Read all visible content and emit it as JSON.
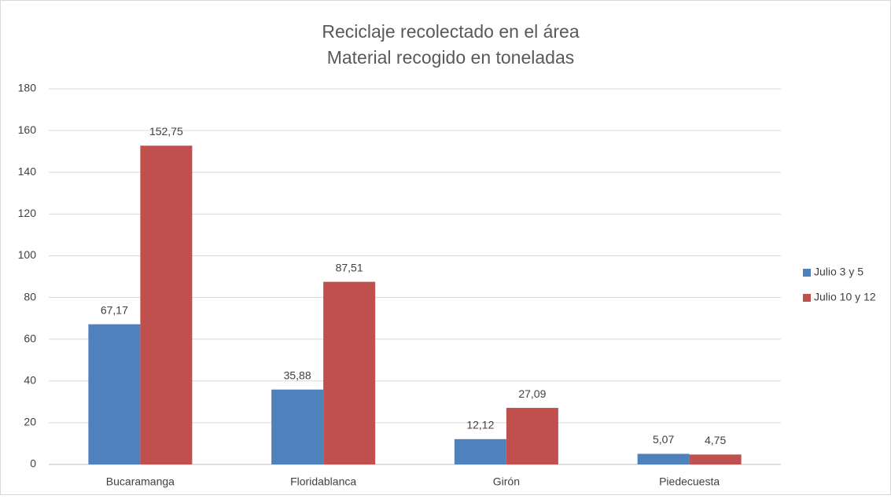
{
  "chart_data": {
    "type": "bar",
    "title": "Reciclaje recolectado en el área",
    "subtitle": "Material recogido en toneladas",
    "categories": [
      "Bucaramanga",
      "Floridablanca",
      "Girón",
      "Piedecuesta"
    ],
    "series": [
      {
        "name": "Julio 3 y 5",
        "color": "#4f81bd",
        "values": [
          67.17,
          35.88,
          12.12,
          5.07
        ],
        "value_labels": [
          "67,17",
          "35,88",
          "12,12",
          "5,07"
        ]
      },
      {
        "name": "Julio 10 y 12",
        "color": "#c0504d",
        "values": [
          152.75,
          87.51,
          27.09,
          4.75
        ],
        "value_labels": [
          "152,75",
          "87,51",
          "27,09",
          "4,75"
        ]
      }
    ],
    "ylim": [
      0,
      180
    ],
    "yticks": [
      0,
      20,
      40,
      60,
      80,
      100,
      120,
      140,
      160,
      180
    ],
    "grid": true,
    "legend": "right"
  }
}
